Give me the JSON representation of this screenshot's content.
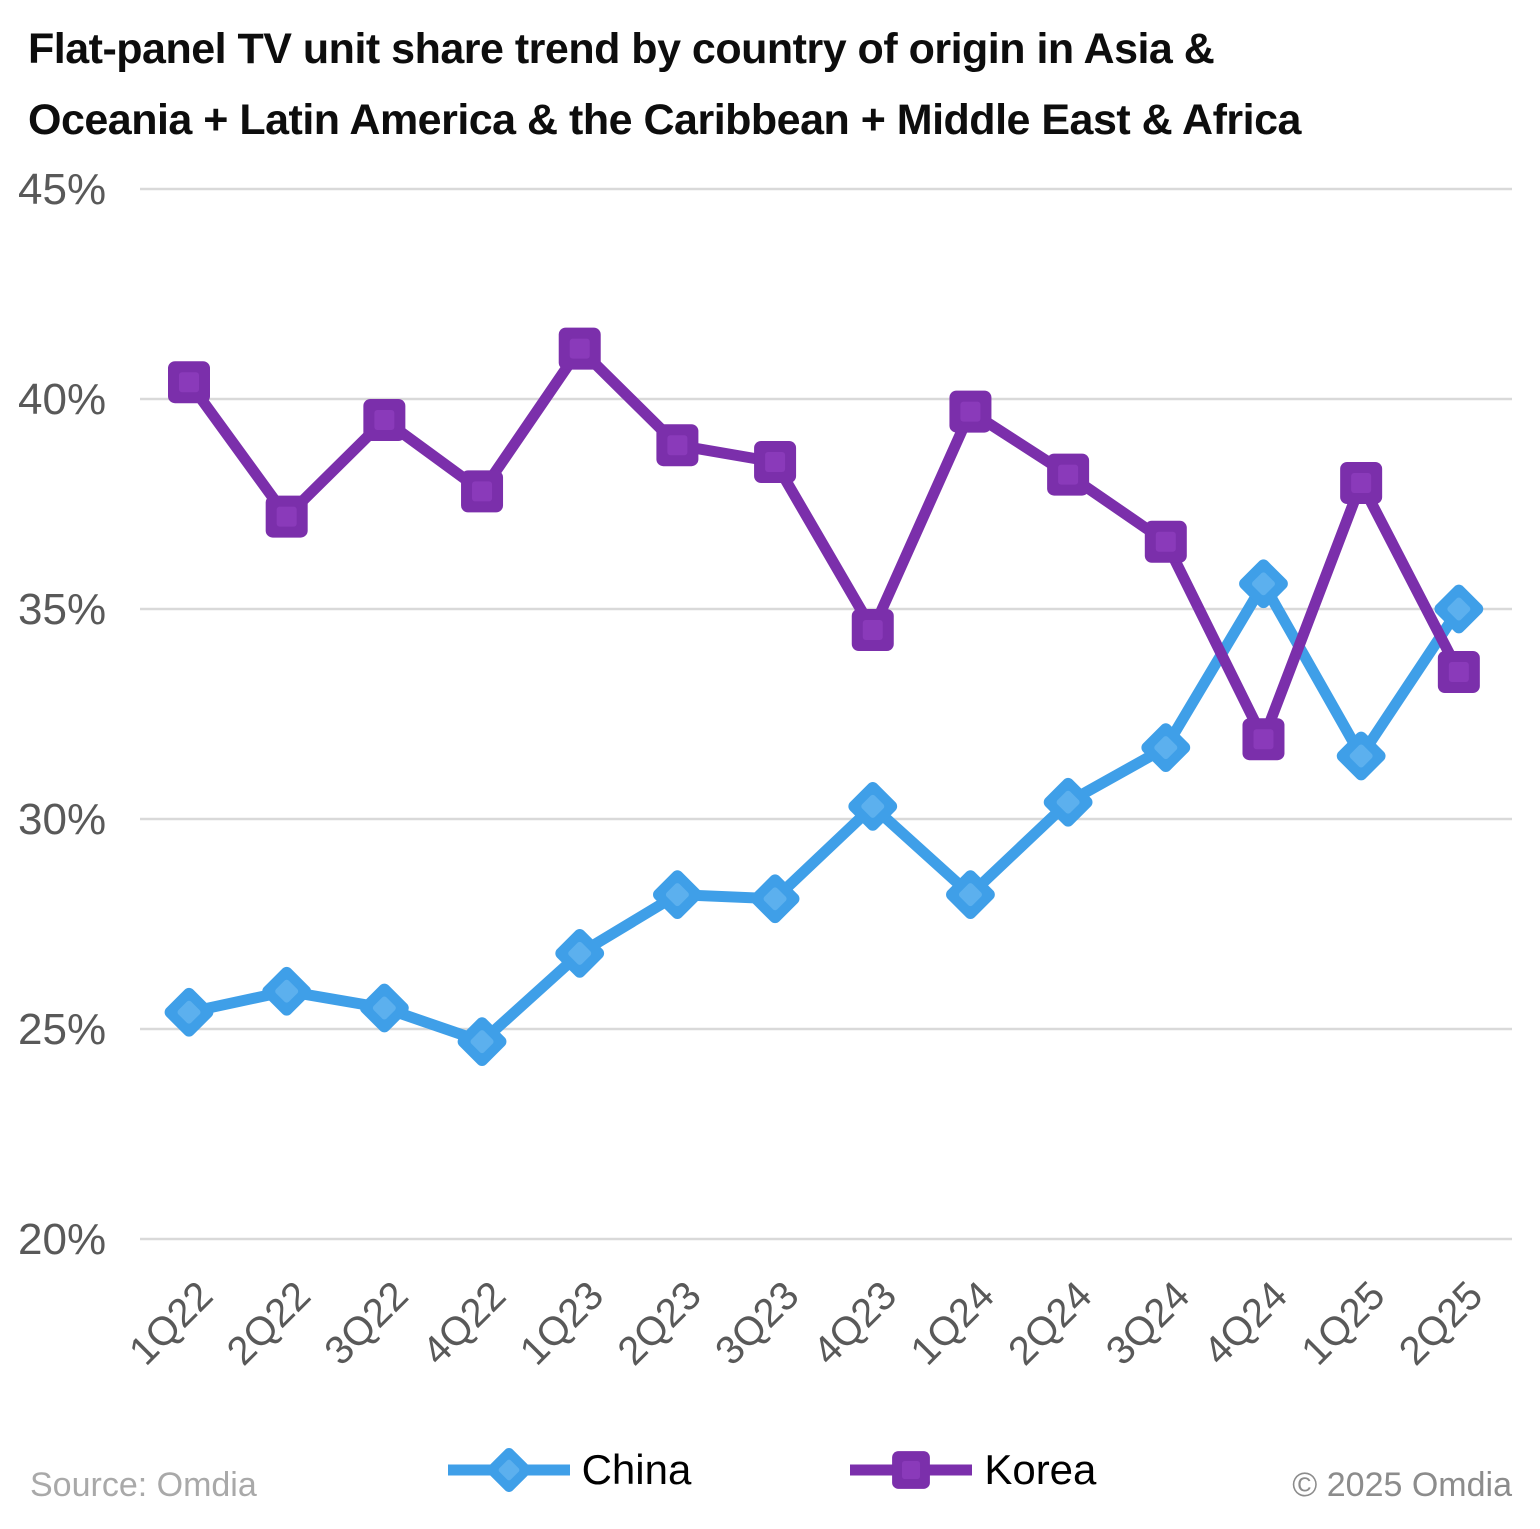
{
  "title": {
    "line1": "Flat-panel TV unit share trend by country of origin in Asia &",
    "line2": "Oceania + Latin America & the Caribbean + Middle East & Africa"
  },
  "footer": {
    "source": "Source: Omdia",
    "copyright": "© 2025 Omdia"
  },
  "chart_data": {
    "type": "line",
    "title": "Flat-panel TV unit share trend by country of origin in Asia & Oceania + Latin America & the Caribbean + Middle East & Africa",
    "categories": [
      "1Q22",
      "2Q22",
      "3Q22",
      "4Q22",
      "1Q23",
      "2Q23",
      "3Q23",
      "4Q23",
      "1Q24",
      "2Q24",
      "3Q24",
      "4Q24",
      "1Q25",
      "2Q25"
    ],
    "series": [
      {
        "name": "China",
        "marker": "diamond",
        "color": "#3f9fe8",
        "marker_inner": "#5cb0ee",
        "values": [
          25.4,
          25.9,
          25.5,
          24.7,
          26.8,
          28.2,
          28.1,
          30.3,
          28.2,
          30.4,
          31.7,
          35.6,
          31.5,
          35.0
        ]
      },
      {
        "name": "Korea",
        "marker": "square",
        "color": "#7b2fab",
        "marker_inner": "#8a3aba",
        "values": [
          40.4,
          37.2,
          39.5,
          37.8,
          41.2,
          38.9,
          38.5,
          34.5,
          39.7,
          38.2,
          36.6,
          31.9,
          38.0,
          33.5
        ]
      }
    ],
    "xlabel": "",
    "ylabel": "",
    "ylim": [
      20,
      45
    ],
    "yticks": [
      45,
      40,
      35,
      30,
      25,
      20
    ],
    "ytick_suffix": "%",
    "grid": true,
    "legend_position": "bottom",
    "grid_color": "#d9d9d9",
    "axis_label_color": "#595959"
  }
}
